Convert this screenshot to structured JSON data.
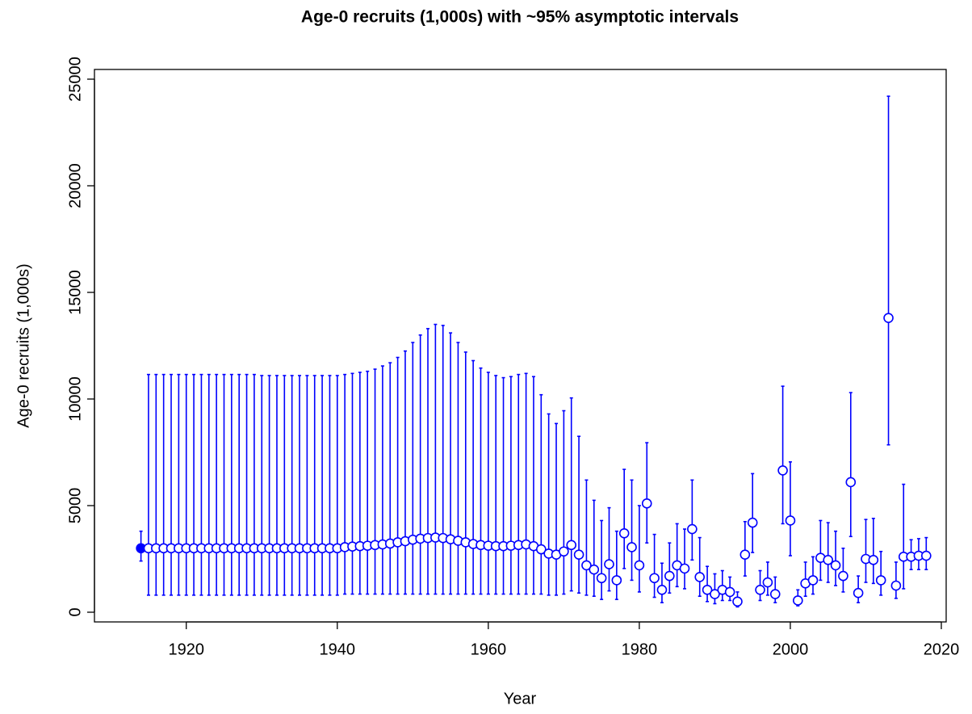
{
  "chart_data": {
    "type": "errorbar",
    "title": "Age-0 recruits (1,000s) with ~95% asymptotic intervals",
    "x_label": "Year",
    "y_label": "Age-0 recruits (1,000s)",
    "xlim": [
      1907.84,
      2020.64
    ],
    "ylim": [
      -455,
      25455
    ],
    "xticks": [
      1920,
      1940,
      1960,
      1980,
      2000,
      2020
    ],
    "yticks": [
      0,
      5000,
      10000,
      15000,
      20000,
      25000
    ],
    "series": [
      {
        "color": "#0000ff",
        "first_point_filled": true,
        "x": [
          1914,
          1915,
          1916,
          1917,
          1918,
          1919,
          1920,
          1921,
          1922,
          1923,
          1924,
          1925,
          1926,
          1927,
          1928,
          1929,
          1930,
          1931,
          1932,
          1933,
          1934,
          1935,
          1936,
          1937,
          1938,
          1939,
          1940,
          1941,
          1942,
          1943,
          1944,
          1945,
          1946,
          1947,
          1948,
          1949,
          1950,
          1951,
          1952,
          1953,
          1954,
          1955,
          1956,
          1957,
          1958,
          1959,
          1960,
          1961,
          1962,
          1963,
          1964,
          1965,
          1966,
          1967,
          1968,
          1969,
          1970,
          1971,
          1972,
          1973,
          1974,
          1975,
          1976,
          1977,
          1978,
          1979,
          1980,
          1981,
          1982,
          1983,
          1984,
          1985,
          1986,
          1987,
          1988,
          1989,
          1990,
          1991,
          1992,
          1993,
          1994,
          1995,
          1996,
          1997,
          1998,
          1999,
          2000,
          2001,
          2002,
          2003,
          2004,
          2005,
          2006,
          2007,
          2008,
          2009,
          2010,
          2011,
          2012,
          2013,
          2014,
          2015,
          2016,
          2017,
          2018
        ],
        "values": [
          3000,
          3000,
          3000,
          3000,
          3000,
          3000,
          3000,
          3000,
          3000,
          3000,
          3000,
          3000,
          3000,
          3000,
          3000,
          3000,
          3000,
          3000,
          3000,
          3000,
          3000,
          3000,
          3000,
          3000,
          3000,
          3000,
          3000,
          3050,
          3080,
          3100,
          3120,
          3150,
          3180,
          3220,
          3280,
          3330,
          3400,
          3450,
          3480,
          3500,
          3480,
          3420,
          3350,
          3280,
          3200,
          3150,
          3120,
          3100,
          3100,
          3120,
          3150,
          3180,
          3100,
          2950,
          2750,
          2700,
          2850,
          3150,
          2700,
          2200,
          2000,
          1600,
          2250,
          1500,
          3700,
          3050,
          2200,
          5100,
          1600,
          1050,
          1700,
          2200,
          2050,
          3900,
          1650,
          1050,
          850,
          1050,
          950,
          500,
          2700,
          4200,
          1050,
          1400,
          850,
          6650,
          4300,
          550,
          1350,
          1500,
          2550,
          2450,
          2200,
          1700,
          6100,
          900,
          2500,
          2450,
          1500,
          13800,
          1250,
          2600,
          2600,
          2650,
          2650
        ],
        "upper": [
          3800,
          11150,
          11150,
          11150,
          11150,
          11150,
          11150,
          11150,
          11150,
          11150,
          11150,
          11150,
          11150,
          11150,
          11150,
          11150,
          11100,
          11100,
          11100,
          11100,
          11100,
          11100,
          11100,
          11100,
          11100,
          11100,
          11100,
          11150,
          11200,
          11250,
          11300,
          11400,
          11550,
          11700,
          11950,
          12250,
          12650,
          13000,
          13300,
          13500,
          13450,
          13100,
          12650,
          12200,
          11800,
          11450,
          11250,
          11100,
          11000,
          11050,
          11150,
          11200,
          11050,
          10200,
          9300,
          8850,
          9450,
          10050,
          8250,
          6200,
          5250,
          4300,
          4900,
          3800,
          6700,
          6200,
          5000,
          7950,
          3650,
          2300,
          3250,
          4150,
          3900,
          6200,
          3500,
          2150,
          1800,
          1950,
          1650,
          950,
          4250,
          6500,
          1950,
          2350,
          1650,
          10600,
          7050,
          1050,
          2350,
          2600,
          4300,
          4200,
          3800,
          3000,
          10300,
          1700,
          4350,
          4400,
          2850,
          24200,
          2350,
          6000,
          3400,
          3450,
          3500
        ],
        "lower": [
          2400,
          800,
          800,
          800,
          800,
          800,
          800,
          800,
          800,
          800,
          800,
          800,
          800,
          800,
          800,
          800,
          800,
          800,
          800,
          800,
          800,
          800,
          800,
          800,
          800,
          800,
          800,
          850,
          850,
          850,
          850,
          850,
          850,
          850,
          850,
          850,
          850,
          850,
          850,
          850,
          850,
          850,
          850,
          850,
          850,
          850,
          850,
          850,
          850,
          850,
          850,
          850,
          850,
          850,
          800,
          800,
          850,
          1000,
          900,
          800,
          750,
          600,
          1000,
          600,
          2050,
          1500,
          950,
          3250,
          700,
          450,
          900,
          1200,
          1100,
          2450,
          750,
          500,
          400,
          550,
          550,
          250,
          1700,
          2800,
          550,
          800,
          450,
          4150,
          2650,
          300,
          750,
          850,
          1500,
          1400,
          1250,
          950,
          3550,
          450,
          1400,
          1350,
          800,
          7850,
          650,
          1100,
          2000,
          2000,
          2000
        ]
      }
    ]
  }
}
